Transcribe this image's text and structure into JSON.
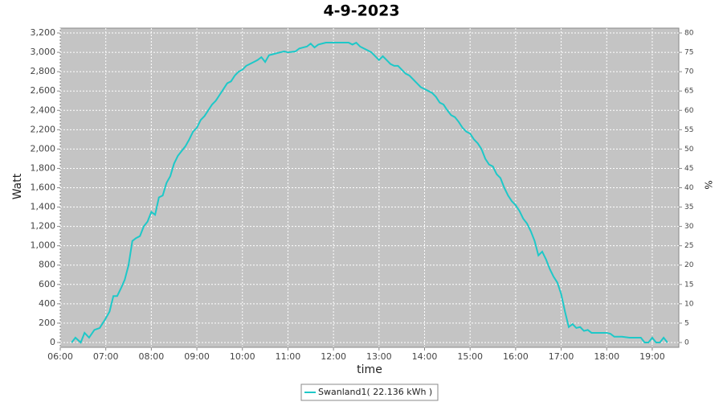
{
  "chart_data": {
    "type": "line",
    "title": "4-9-2023",
    "xlabel": "time",
    "ylabel": "Watt",
    "y2label": "%",
    "x": [
      "06:15",
      "06:20",
      "06:27",
      "06:32",
      "06:38",
      "06:45",
      "06:52",
      "07:00",
      "07:05",
      "07:10",
      "07:15",
      "07:20",
      "07:25",
      "07:30",
      "07:35",
      "07:40",
      "07:45",
      "07:50",
      "07:55",
      "08:00",
      "08:05",
      "08:10",
      "08:15",
      "08:20",
      "08:25",
      "08:30",
      "08:35",
      "08:40",
      "08:45",
      "08:50",
      "08:55",
      "09:00",
      "09:05",
      "09:10",
      "09:15",
      "09:20",
      "09:25",
      "09:30",
      "09:35",
      "09:40",
      "09:45",
      "09:50",
      "09:55",
      "10:00",
      "10:05",
      "10:10",
      "10:15",
      "10:20",
      "10:25",
      "10:30",
      "10:35",
      "10:40",
      "10:45",
      "10:50",
      "10:55",
      "11:00",
      "11:10",
      "11:15",
      "11:20",
      "11:25",
      "11:30",
      "11:35",
      "11:40",
      "11:50",
      "12:00",
      "12:10",
      "12:20",
      "12:25",
      "12:30",
      "12:35",
      "12:40",
      "12:45",
      "12:50",
      "12:55",
      "13:00",
      "13:05",
      "13:10",
      "13:15",
      "13:20",
      "13:25",
      "13:30",
      "13:35",
      "13:40",
      "13:45",
      "13:50",
      "13:55",
      "14:00",
      "14:05",
      "14:10",
      "14:15",
      "14:20",
      "14:25",
      "14:30",
      "14:35",
      "14:40",
      "14:45",
      "14:50",
      "14:55",
      "15:00",
      "15:05",
      "15:10",
      "15:15",
      "15:20",
      "15:25",
      "15:30",
      "15:35",
      "15:40",
      "15:45",
      "15:50",
      "15:55",
      "16:00",
      "16:05",
      "16:10",
      "16:15",
      "16:20",
      "16:25",
      "16:30",
      "16:35",
      "16:40",
      "16:45",
      "16:50",
      "16:55",
      "17:00",
      "17:05",
      "17:10",
      "17:15",
      "17:20",
      "17:25",
      "17:30",
      "17:35",
      "17:40",
      "17:50",
      "18:00",
      "18:05",
      "18:10",
      "18:20",
      "18:30",
      "18:40",
      "18:45",
      "18:50",
      "18:55",
      "19:00",
      "19:05",
      "19:10",
      "19:15",
      "19:20"
    ],
    "series": [
      {
        "name": "Swanland1( 22.136 kWh )",
        "color": "#1ec8c8",
        "values": [
          0,
          50,
          0,
          100,
          50,
          130,
          150,
          250,
          320,
          480,
          480,
          560,
          650,
          800,
          1050,
          1080,
          1100,
          1200,
          1250,
          1350,
          1320,
          1500,
          1520,
          1650,
          1720,
          1850,
          1930,
          1980,
          2030,
          2100,
          2180,
          2220,
          2300,
          2340,
          2400,
          2460,
          2500,
          2560,
          2620,
          2680,
          2700,
          2760,
          2800,
          2820,
          2860,
          2880,
          2900,
          2920,
          2950,
          2900,
          2970,
          2980,
          2990,
          3000,
          3010,
          3000,
          3010,
          3040,
          3050,
          3060,
          3090,
          3050,
          3080,
          3100,
          3100,
          3100,
          3100,
          3080,
          3100,
          3060,
          3040,
          3020,
          3000,
          2960,
          2920,
          2960,
          2920,
          2880,
          2860,
          2860,
          2820,
          2780,
          2760,
          2720,
          2680,
          2640,
          2620,
          2600,
          2580,
          2540,
          2480,
          2460,
          2400,
          2350,
          2330,
          2280,
          2220,
          2180,
          2160,
          2100,
          2060,
          2000,
          1900,
          1840,
          1820,
          1740,
          1700,
          1600,
          1520,
          1460,
          1420,
          1360,
          1280,
          1230,
          1150,
          1050,
          900,
          940,
          860,
          760,
          680,
          620,
          500,
          320,
          160,
          190,
          150,
          160,
          120,
          130,
          100,
          100,
          100,
          90,
          60,
          60,
          50,
          50,
          50,
          0,
          0,
          50,
          0,
          0,
          50,
          0
        ]
      }
    ],
    "xlim": [
      "06:00",
      "19:35"
    ],
    "xticks": [
      "06:00",
      "07:00",
      "08:00",
      "09:00",
      "10:00",
      "11:00",
      "12:00",
      "13:00",
      "14:00",
      "15:00",
      "16:00",
      "17:00",
      "18:00",
      "19:00"
    ],
    "ylim": [
      -50,
      3250
    ],
    "yticks": [
      0,
      200,
      400,
      600,
      800,
      {
        "value": 1000,
        "label": "1,000"
      },
      {
        "value": 1200,
        "label": "1,200"
      },
      {
        "value": 1400,
        "label": "1,400"
      },
      {
        "value": 1600,
        "label": "1,600"
      },
      {
        "value": 1800,
        "label": "1,800"
      },
      {
        "value": 2000,
        "label": "2,000"
      },
      {
        "value": 2200,
        "label": "2,200"
      },
      {
        "value": 2400,
        "label": "2,400"
      },
      {
        "value": 2600,
        "label": "2,600"
      },
      {
        "value": 2800,
        "label": "2,800"
      },
      {
        "value": 3000,
        "label": "3,000"
      },
      {
        "value": 3200,
        "label": "3,200"
      }
    ],
    "y2lim": [
      -1.25,
      81.25
    ],
    "y2ticks": [
      0,
      5,
      10,
      15,
      20,
      25,
      30,
      35,
      40,
      45,
      50,
      55,
      60,
      65,
      70,
      75,
      80
    ],
    "grid": true
  }
}
